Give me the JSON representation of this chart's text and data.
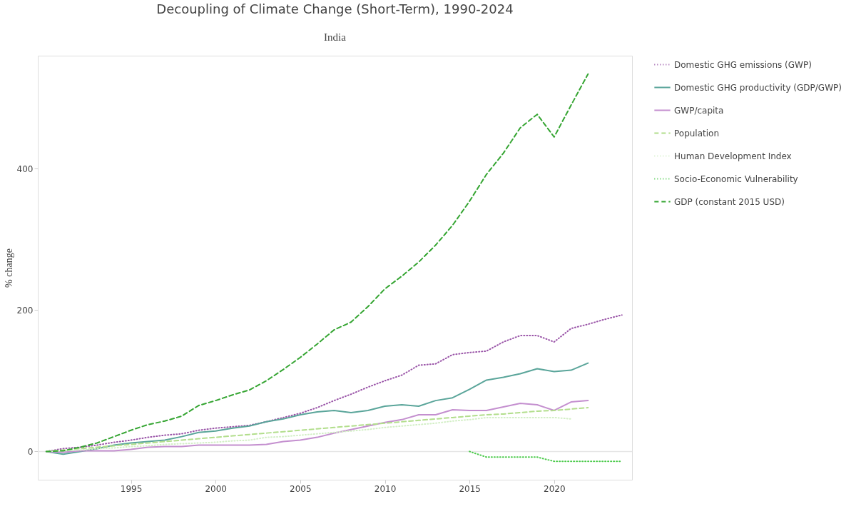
{
  "chart_data": {
    "type": "line",
    "title": "Decoupling of Climate Change (Short-Term), 1990-2024",
    "subtitle": "India",
    "ylabel": "% change",
    "x": [
      1990,
      1991,
      1992,
      1993,
      1994,
      1995,
      1996,
      1997,
      1998,
      1999,
      2000,
      2001,
      2002,
      2003,
      2004,
      2005,
      2006,
      2007,
      2008,
      2009,
      2010,
      2011,
      2012,
      2013,
      2014,
      2015,
      2016,
      2017,
      2018,
      2019,
      2020,
      2021,
      2022,
      2023,
      2024
    ],
    "series": [
      {
        "name": "Domestic GHG emissions (GWP)",
        "color": "#9a55a8",
        "line_style": "dotted",
        "values": [
          0,
          4,
          6,
          9,
          13,
          16,
          20,
          23,
          25,
          30,
          33,
          35,
          37,
          42,
          48,
          54,
          62,
          72,
          81,
          91,
          100,
          108,
          122,
          124,
          137,
          140,
          142,
          155,
          164,
          164,
          155,
          174,
          180,
          187,
          193
        ]
      },
      {
        "name": "Domestic GHG productivity (GDP/GWP)",
        "color": "#5aa59a",
        "line_style": "solid",
        "values": [
          0,
          -4,
          0,
          4,
          9,
          12,
          14,
          16,
          21,
          27,
          29,
          33,
          36,
          42,
          46,
          52,
          56,
          58,
          55,
          58,
          64,
          66,
          64,
          72,
          76,
          88,
          101,
          105,
          110,
          117,
          113,
          115,
          125,
          null,
          null
        ]
      },
      {
        "name": "GWP/capita",
        "color": "#c48fcf",
        "line_style": "solid",
        "values": [
          0,
          -1,
          1,
          1,
          1,
          3,
          6,
          7,
          7,
          9,
          9,
          9,
          9,
          10,
          14,
          16,
          20,
          26,
          31,
          36,
          41,
          45,
          52,
          52,
          59,
          58,
          58,
          63,
          68,
          66,
          58,
          70,
          72,
          null,
          null
        ]
      },
      {
        "name": "Population",
        "color": "#b2de8c",
        "line_style": "dashed",
        "values": [
          0,
          2,
          4,
          6,
          8,
          10,
          12,
          14,
          16,
          18,
          20,
          22,
          24,
          26,
          28,
          30,
          32,
          34,
          36,
          38,
          40,
          42,
          44,
          46,
          48,
          50,
          52,
          53,
          55,
          57,
          58,
          60,
          62,
          null,
          null
        ]
      },
      {
        "name": "Human Development Index",
        "color": "#d3efc6",
        "line_style": "dotted",
        "values": [
          0,
          1,
          2,
          4,
          5,
          7,
          8,
          10,
          11,
          12,
          13,
          15,
          16,
          20,
          21,
          23,
          25,
          27,
          29,
          31,
          34,
          36,
          38,
          40,
          43,
          45,
          48,
          48,
          48,
          48,
          48,
          46,
          null,
          null,
          null
        ]
      },
      {
        "name": "Socio-Economic Vulnerability",
        "color": "#4dcb4d",
        "line_style": "dotted",
        "values": [
          null,
          null,
          null,
          null,
          null,
          null,
          null,
          null,
          null,
          null,
          null,
          null,
          null,
          null,
          null,
          null,
          null,
          null,
          null,
          null,
          null,
          null,
          null,
          null,
          null,
          0,
          -8,
          -8,
          -8,
          -8,
          -14,
          -14,
          -14,
          -14,
          -14
        ]
      },
      {
        "name": "GDP (constant 2015 USD)",
        "color": "#35a532",
        "line_style": "dashed",
        "values": [
          0,
          1,
          6,
          12,
          21,
          30,
          38,
          43,
          50,
          65,
          72,
          80,
          87,
          100,
          116,
          133,
          152,
          172,
          183,
          205,
          230,
          248,
          268,
          292,
          320,
          354,
          392,
          422,
          458,
          477,
          445,
          490,
          534,
          null,
          null
        ]
      }
    ],
    "xlim": [
      1989.5,
      2024.6
    ],
    "xticks": [
      1995,
      2000,
      2005,
      2010,
      2015,
      2020
    ],
    "ylim": [
      -40,
      560
    ],
    "yticks": [
      0,
      200,
      400
    ],
    "ref_lines": [
      {
        "axis": "y",
        "value": 0,
        "color": "#e5e5e5"
      }
    ],
    "grid": false,
    "legend": "top right"
  }
}
